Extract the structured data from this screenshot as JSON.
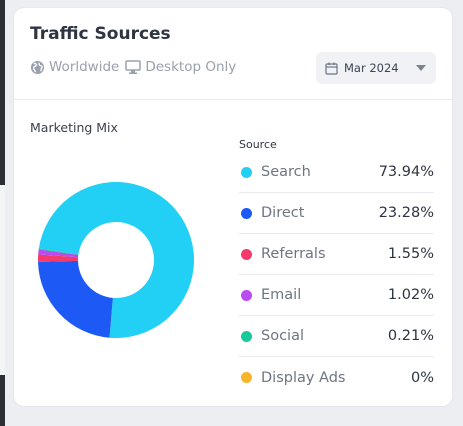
{
  "widget": {
    "title": "Traffic Sources",
    "region_label": "Worldwide",
    "device_label": "Desktop Only",
    "date_selector": "Mar 2024",
    "section_label": "Marketing Mix",
    "legend_header": "Source"
  },
  "sources": [
    {
      "name": "Search",
      "pct": "73.94%",
      "value": 73.94,
      "color": "#22d0f5"
    },
    {
      "name": "Direct",
      "pct": "23.28%",
      "value": 23.28,
      "color": "#1d5af5"
    },
    {
      "name": "Referrals",
      "pct": "1.55%",
      "value": 1.55,
      "color": "#f33a6a"
    },
    {
      "name": "Email",
      "pct": "1.02%",
      "value": 1.02,
      "color": "#b84cf0"
    },
    {
      "name": "Social",
      "pct": "0.21%",
      "value": 0.21,
      "color": "#17c99b"
    },
    {
      "name": "Display Ads",
      "pct": "0%",
      "value": 0,
      "color": "#f7b52c"
    }
  ],
  "chart_data": {
    "type": "pie",
    "categories": [
      "Search",
      "Direct",
      "Referrals",
      "Email",
      "Social",
      "Display Ads"
    ],
    "values": [
      73.94,
      23.28,
      1.55,
      1.02,
      0.21,
      0
    ]
  }
}
